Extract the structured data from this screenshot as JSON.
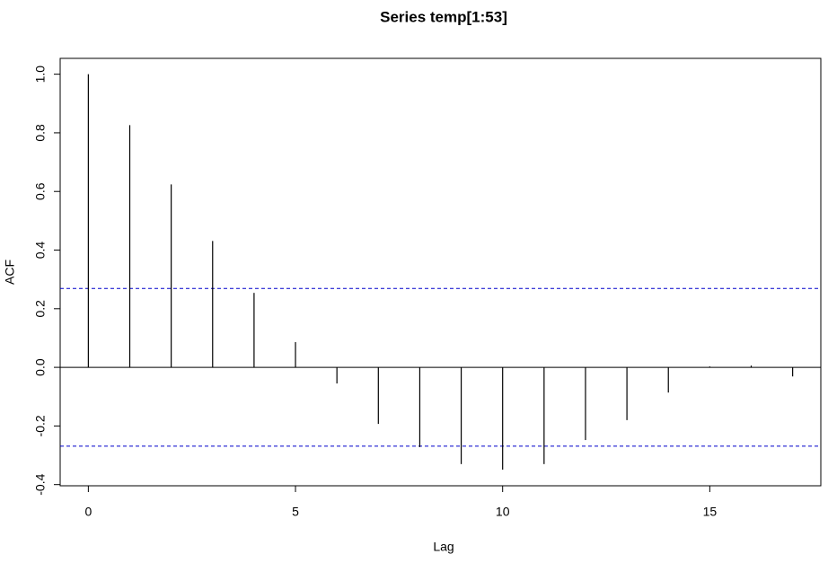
{
  "chart_data": {
    "type": "stem",
    "title": "Series  temp[1:53]",
    "x_label": "Lag",
    "y_label": "ACF",
    "x": [
      0,
      1,
      2,
      3,
      4,
      5,
      6,
      7,
      8,
      9,
      10,
      11,
      12,
      13,
      14,
      15,
      16,
      17
    ],
    "values": [
      1.0,
      0.826,
      0.624,
      0.431,
      0.254,
      0.086,
      -0.055,
      -0.193,
      -0.272,
      -0.33,
      -0.349,
      -0.33,
      -0.248,
      -0.18,
      -0.086,
      0.003,
      0.006,
      -0.031
    ],
    "color": "#000000",
    "conf_limits": [
      0.269,
      -0.269
    ],
    "conf_color": "#0000cc",
    "xlim": [
      -0.68,
      17.68
    ],
    "ylim": [
      -0.404,
      1.054
    ],
    "xticks": [
      0,
      5,
      10,
      15
    ],
    "yticks": [
      {
        "value": -0.4,
        "label": "-0.4"
      },
      -0.2,
      {
        "value": 0,
        "label": "0.0"
      },
      0.2,
      0.4,
      0.6,
      0.8,
      {
        "value": 1,
        "label": "1.0"
      }
    ]
  }
}
